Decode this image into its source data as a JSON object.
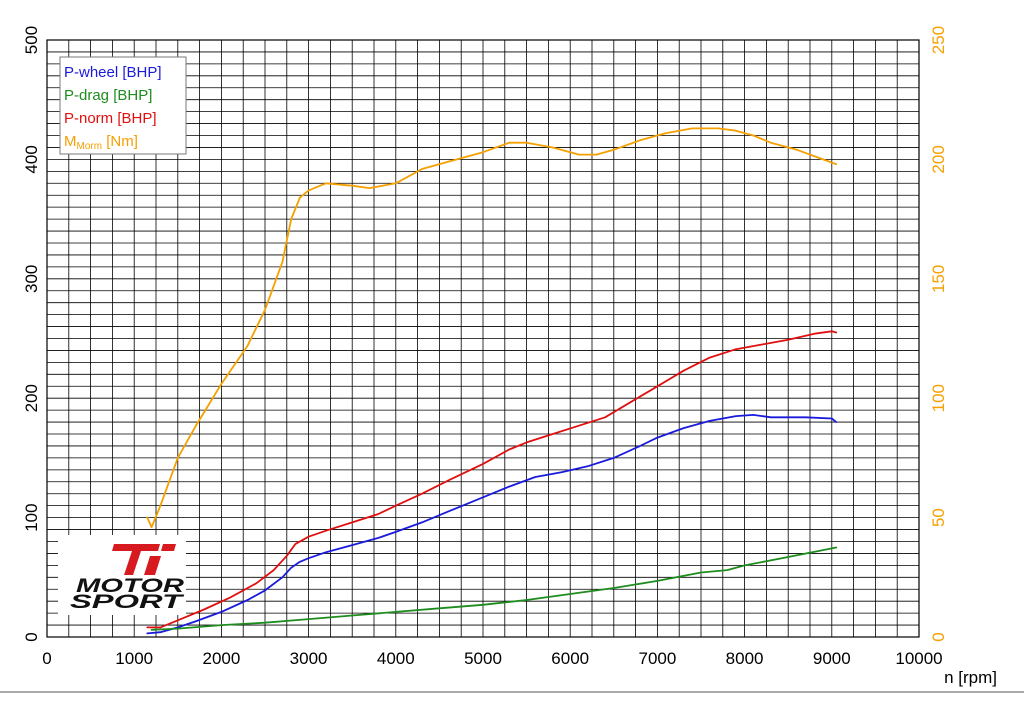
{
  "chart_data": {
    "type": "line",
    "xlabel": "n [rpm]",
    "x_ticks": [
      "0",
      "1000",
      "2000",
      "3000",
      "4000",
      "5000",
      "6000",
      "7000",
      "8000",
      "9000",
      "10000"
    ],
    "xlim": [
      0,
      10000
    ],
    "ylim_left": [
      0,
      500
    ],
    "ylim_right": [
      0,
      250
    ],
    "y_ticks_left": [
      "0",
      "100",
      "200",
      "300",
      "400",
      "500"
    ],
    "y_ticks_right": [
      "0",
      "50",
      "100",
      "150",
      "200",
      "250"
    ],
    "grid": true,
    "legend_position": "top-left",
    "legend": [
      {
        "text": "P-wheel [BHP]",
        "color": "#1a1adc"
      },
      {
        "text": "P-drag [BHP]",
        "color": "#1e8c1e"
      },
      {
        "text": "P-norm [BHP]",
        "color": "#e01010"
      },
      {
        "text": "M",
        "sub": "Morm",
        "suffix": " [Nm]",
        "color": "#f5a000"
      }
    ],
    "series": [
      {
        "name": "P-wheel [BHP]",
        "axis": "left",
        "color": "#1a1adc",
        "x": [
          1150,
          1300,
          1500,
          1700,
          2000,
          2300,
          2500,
          2700,
          2800,
          2900,
          3000,
          3200,
          3500,
          3800,
          4000,
          4300,
          4600,
          5000,
          5300,
          5600,
          5900,
          6200,
          6500,
          6800,
          7000,
          7300,
          7600,
          7900,
          8100,
          8300,
          8500,
          8700,
          9000,
          9050
        ],
        "y": [
          3,
          4,
          8,
          13,
          21,
          31,
          39,
          50,
          58,
          63,
          66,
          71,
          77,
          83,
          88,
          96,
          105,
          117,
          126,
          134,
          138,
          143,
          150,
          160,
          167,
          175,
          181,
          185,
          186,
          184,
          184,
          184,
          183,
          180
        ]
      },
      {
        "name": "P-drag [BHP]",
        "axis": "left",
        "color": "#1e8c1e",
        "x": [
          1200,
          1500,
          2000,
          2500,
          3000,
          3500,
          4000,
          4500,
          5000,
          5500,
          6000,
          6500,
          7000,
          7500,
          7800,
          8000,
          8500,
          9050
        ],
        "y": [
          6,
          7,
          10,
          12,
          15,
          18,
          21,
          24,
          27,
          31,
          36,
          41,
          47,
          54,
          56,
          60,
          67,
          75
        ]
      },
      {
        "name": "P-norm [BHP]",
        "axis": "left",
        "color": "#e01010",
        "x": [
          1150,
          1300,
          1500,
          1800,
          2100,
          2400,
          2600,
          2750,
          2850,
          3000,
          3200,
          3500,
          3800,
          4000,
          4300,
          4600,
          5000,
          5300,
          5500,
          5800,
          6100,
          6400,
          6700,
          7000,
          7300,
          7600,
          7900,
          8200,
          8500,
          8800,
          9000,
          9050
        ],
        "y": [
          8,
          8,
          14,
          23,
          33,
          45,
          56,
          68,
          78,
          84,
          89,
          96,
          103,
          110,
          120,
          131,
          145,
          157,
          163,
          170,
          177,
          184,
          197,
          210,
          223,
          234,
          241,
          245,
          249,
          254,
          256,
          255
        ]
      },
      {
        "name": "M_Morm [Nm]",
        "axis": "right",
        "color": "#f5a000",
        "x": [
          1150,
          1200,
          1300,
          1500,
          1700,
          2000,
          2300,
          2500,
          2700,
          2800,
          2900,
          3000,
          3200,
          3500,
          3700,
          4000,
          4300,
          4600,
          5000,
          5300,
          5500,
          5800,
          6100,
          6300,
          6500,
          6800,
          7100,
          7400,
          7700,
          7900,
          8100,
          8300,
          8600,
          8900,
          9050
        ],
        "y": [
          50,
          46,
          55,
          75,
          88,
          106,
          122,
          137,
          157,
          175,
          184,
          187,
          190,
          189,
          188,
          190,
          196,
          199,
          203,
          207,
          207,
          205,
          202,
          202,
          204,
          208,
          211,
          213,
          213,
          212,
          210,
          207,
          204,
          200,
          198
        ]
      }
    ]
  }
}
